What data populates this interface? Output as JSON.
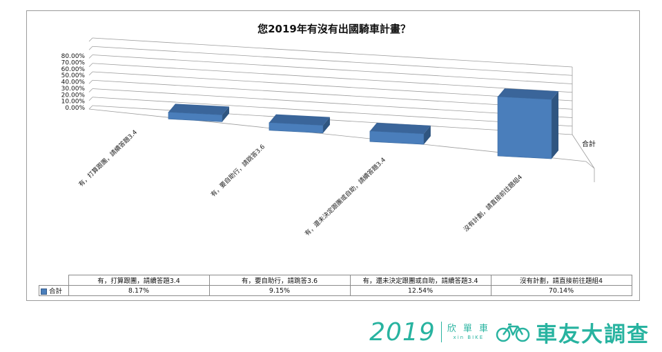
{
  "chart_data": {
    "type": "bar",
    "title": "您2019年有沒有出國騎車計畫？",
    "categories": [
      "有，打算跟團，請續答題3.4",
      "有，要自助行，請跳答3.6",
      "有，還未決定跟團或自助，請續答題3.4",
      "沒有計劃，請直接前往題組4"
    ],
    "series": [
      {
        "name": "合計",
        "values": [
          8.17,
          9.15,
          12.54,
          70.14
        ]
      }
    ],
    "value_labels": [
      "8.17%",
      "9.15%",
      "12.54%",
      "70.14%"
    ],
    "ylim": [
      0,
      80
    ],
    "yticks": [
      "0.00%",
      "10.00%",
      "20.00%",
      "30.00%",
      "40.00%",
      "50.00%",
      "60.00%",
      "70.00%",
      "80.00%"
    ],
    "grid": true,
    "three_d": true,
    "legend": "data-table",
    "colors": {
      "bar_front": "#4a7ebb",
      "bar_top": "#3a659a",
      "bar_side": "#2f5580"
    }
  },
  "footer": {
    "year": "2019",
    "brand_cn": "欣 單 車",
    "brand_en": "xin BIKE",
    "survey_title": "車友大調查",
    "color": "#28b3a0"
  }
}
